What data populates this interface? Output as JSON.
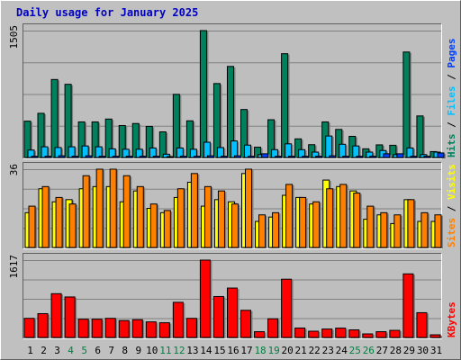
{
  "chart_data": {
    "type": "bar",
    "title": "Daily usage for January 2025",
    "categories": [
      "1",
      "2",
      "3",
      "4",
      "5",
      "6",
      "7",
      "8",
      "9",
      "10",
      "11",
      "12",
      "13",
      "14",
      "15",
      "16",
      "17",
      "18",
      "19",
      "20",
      "21",
      "22",
      "23",
      "24",
      "25",
      "26",
      "27",
      "28",
      "29",
      "30",
      "31"
    ],
    "weekend_days": [
      4,
      5,
      11,
      12,
      18,
      19,
      25,
      26
    ],
    "colors": {
      "background": "#c0c0c0",
      "panel": "#bebebe",
      "grid": "#808080",
      "title": "#0000c0",
      "hits": "#00805c",
      "files": "#00c0ff",
      "pages": "#0040ff",
      "visits": "#ffff00",
      "sites": "#ff8000",
      "kbytes": "#ff0000",
      "weekend_label": "#008040"
    },
    "panels": [
      {
        "id": "hits-files-pages",
        "max_label": "1505",
        "ylim": [
          0,
          1505
        ],
        "legend": [
          {
            "name": "Hits",
            "color": "#00805c"
          },
          {
            "name": "Files",
            "color": "#00c0ff"
          },
          {
            "name": "Pages",
            "color": "#0040ff"
          }
        ],
        "series": [
          {
            "name": "Hits",
            "color": "#00805c",
            "values": [
              431,
              524,
              925,
              868,
              422,
              422,
              456,
              379,
              403,
              369,
              304,
              749,
              435,
              1505,
              877,
              1080,
              569,
              122,
              448,
              1231,
              221,
              152,
              422,
              333,
              251,
              103,
              150,
              145,
              1251,
              493,
              70
            ]
          },
          {
            "name": "Files",
            "color": "#00c0ff",
            "values": [
              88,
              127,
              118,
              127,
              137,
              127,
              103,
              98,
              98,
              113,
              39,
              113,
              98,
              181,
              118,
              196,
              147,
              34,
              93,
              162,
              93,
              64,
              255,
              157,
              137,
              64,
              83,
              34,
              113,
              34,
              64
            ]
          },
          {
            "name": "Pages",
            "color": "#0040ff",
            "values": [
              15,
              15,
              20,
              15,
              20,
              15,
              15,
              15,
              15,
              15,
              10,
              15,
              15,
              20,
              15,
              20,
              15,
              44,
              15,
              15,
              15,
              15,
              20,
              15,
              15,
              15,
              44,
              44,
              15,
              15,
              54
            ]
          }
        ]
      },
      {
        "id": "visits-sites",
        "max_label": "36",
        "ylim": [
          0,
          36
        ],
        "legend": [
          {
            "name": "Sites",
            "color": "#ff8000"
          },
          {
            "name": "Visits",
            "color": "#ffff00"
          }
        ],
        "series": [
          {
            "name": "Visits",
            "color": "#ffff00",
            "values": [
              16,
              27,
              21,
              22,
              27,
              28,
              28,
              21,
              26,
              18,
              16,
              23,
              30,
              19,
              22,
              21,
              34,
              12,
              14,
              24,
              23,
              20,
              31,
              28,
              26,
              13,
              15,
              11,
              22,
              12,
              12
            ]
          },
          {
            "name": "Sites",
            "color": "#ff8000",
            "values": [
              19,
              28,
              23,
              20,
              33,
              36,
              36,
              33,
              28,
              20,
              17,
              27,
              34,
              28,
              26,
              20,
              36,
              15,
              16,
              29,
              23,
              21,
              27,
              29,
              25,
              19,
              16,
              15,
              22,
              16,
              15
            ]
          }
        ]
      },
      {
        "id": "kbytes",
        "max_label": "1617",
        "ylim": [
          0,
          1617
        ],
        "legend": [
          {
            "name": "KBytes",
            "color": "#ff0000"
          }
        ],
        "series": [
          {
            "name": "KBytes",
            "color": "#ff0000",
            "values": [
              400,
              498,
              915,
              847,
              382,
              382,
              400,
              354,
              372,
              326,
              308,
              735,
              400,
              1617,
              856,
              1033,
              568,
              121,
              391,
              1218,
              198,
              131,
              177,
              196,
              159,
              75,
              121,
              149,
              1329,
              518,
              56
            ]
          }
        ]
      }
    ]
  }
}
